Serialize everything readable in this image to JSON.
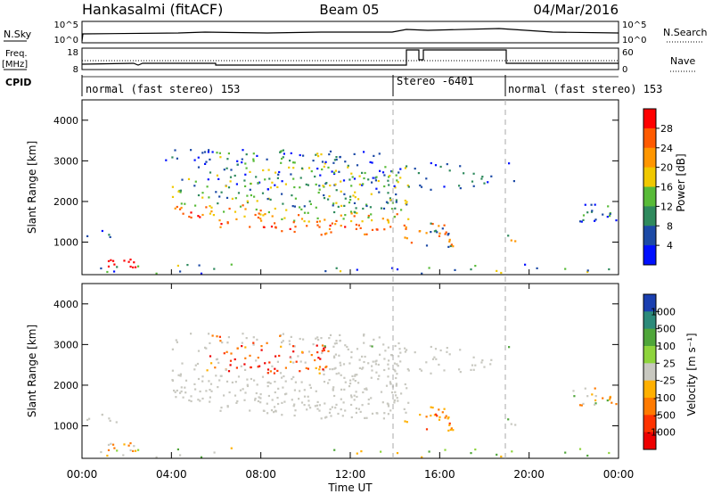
{
  "header": {
    "station": "Hankasalmi (fitACF)",
    "beam": "Beam 05",
    "date": "04/Mar/2016"
  },
  "panels": {
    "nsky": {
      "left_label": "N.Sky",
      "right_label": "N.Search",
      "left_ticks": [
        "10^5",
        "10^0"
      ],
      "right_ticks": [
        "10^5",
        "10^0"
      ]
    },
    "freq": {
      "left_label_1": "Freq.",
      "left_label_2": "[MHz]",
      "right_label": "Nave",
      "left_ticks": [
        "18",
        "8"
      ],
      "right_ticks": [
        "60",
        "0"
      ]
    },
    "cpid": {
      "label": "CPID",
      "segments": [
        {
          "start": 0,
          "end": 14,
          "label": "normal (fast stereo) 153"
        },
        {
          "start": 14,
          "end": 19,
          "label": "Stereo -6401"
        },
        {
          "start": 19,
          "end": 24,
          "label": "normal (fast stereo) 153"
        }
      ]
    }
  },
  "chart_data": [
    {
      "type": "heatmap",
      "name": "Power",
      "ylabel": "Slant Range [km]",
      "ylim": [
        200,
        4500
      ],
      "yticks": [
        1000,
        2000,
        3000,
        4000
      ],
      "xlim": [
        0,
        24
      ],
      "colorbar": {
        "label": "Power [dB]",
        "ticks": [
          "28",
          "24",
          "20",
          "16",
          "12",
          "8",
          "4"
        ],
        "colors": [
          "#ff0000",
          "#ff5a00",
          "#ff9600",
          "#f0c800",
          "#58bb38",
          "#2f8a5d",
          "#1c4aa6",
          "#0010ff"
        ]
      }
    },
    {
      "type": "heatmap",
      "name": "Velocity",
      "ylabel": "Slant Range [km]",
      "ylim": [
        200,
        4500
      ],
      "yticks": [
        1000,
        2000,
        3000,
        4000
      ],
      "xlim": [
        0,
        24
      ],
      "xlabel": "Time UT",
      "xticks": [
        "00:00",
        "04:00",
        "08:00",
        "12:00",
        "16:00",
        "20:00",
        "00:00"
      ],
      "colorbar": {
        "label": "Velocity [m s⁻¹]",
        "ticks": [
          "1000",
          "500",
          "100",
          "25",
          "-25",
          "-100",
          "-500",
          "-1000"
        ],
        "colors": [
          "#1a3fb0",
          "#2c8a7a",
          "#4fa63a",
          "#8ed43c",
          "#c8c8c0",
          "#ffb000",
          "#ff7a00",
          "#ff3300",
          "#ee0000"
        ]
      }
    }
  ]
}
